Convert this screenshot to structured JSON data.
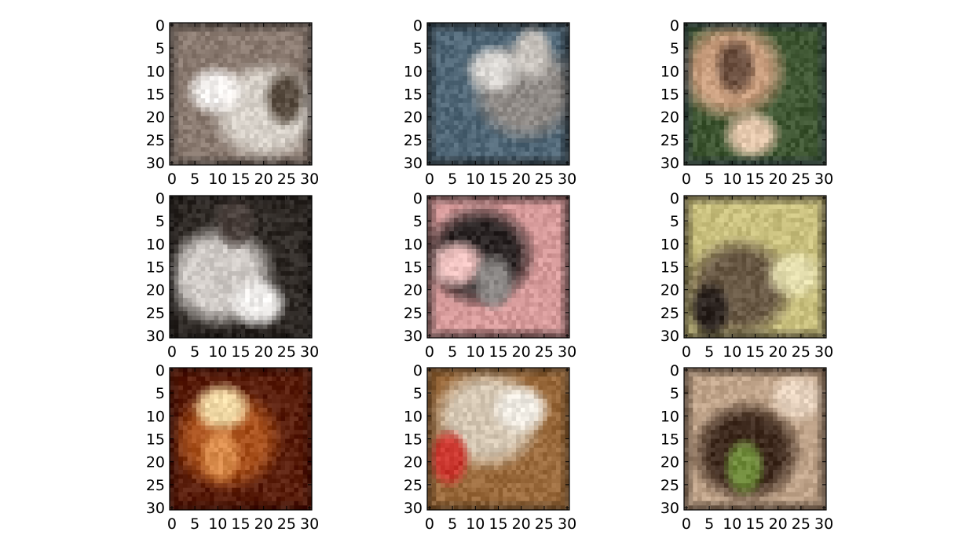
{
  "figure": {
    "panels": [
      {
        "id": "r0c0",
        "subject": "tabby-and-white cat face close-up",
        "palette": {
          "bg": "#8a7a70",
          "main": "#d8d2ca",
          "accent": "#5a4e42",
          "light": "#f3f0ee",
          "dark": "#2c2826"
        }
      },
      {
        "id": "r0c1",
        "subject": "gray fluffy animal on blue background",
        "palette": {
          "bg": "#4f6676",
          "main": "#8f8a86",
          "accent": "#c7c2bc",
          "light": "#d9d6d2",
          "dark": "#151515"
        }
      },
      {
        "id": "r0c2",
        "subject": "tan pomeranian dog in basket",
        "palette": {
          "bg": "#3e5632",
          "main": "#c89d7d",
          "accent": "#6a4e3e",
          "light": "#e6c9ae",
          "dark": "#222a3c"
        }
      },
      {
        "id": "r1c0",
        "subject": "white fluffy puppy",
        "palette": {
          "bg": "#2f2a26",
          "main": "#cfcac6",
          "accent": "#4a403c",
          "light": "#f0eeec",
          "dark": "#1a1716"
        }
      },
      {
        "id": "r1c1",
        "subject": "black and gray cat on pink striped fabric",
        "palette": {
          "bg": "#d69a9a",
          "main": "#2a2424",
          "accent": "#8a8684",
          "light": "#efc2c0",
          "dark": "#0e0c0c"
        }
      },
      {
        "id": "r1c2",
        "subject": "spotted puppy on straw",
        "palette": {
          "bg": "#c9c07e",
          "main": "#6a5a46",
          "accent": "#2c2420",
          "light": "#e6e0b0",
          "dark": "#1c1816"
        }
      },
      {
        "id": "r2c0",
        "subject": "orange-brown fluffy animal close-up",
        "palette": {
          "bg": "#5a1e0c",
          "main": "#a8501c",
          "accent": "#d88a4a",
          "light": "#f4dca8",
          "dark": "#2a0a04"
        }
      },
      {
        "id": "r2c1",
        "subject": "cat with colorful beaded collar",
        "palette": {
          "bg": "#9a6a3c",
          "main": "#d6c8b4",
          "accent": "#c8342c",
          "light": "#f0ece4",
          "dark": "#3c2c1c"
        }
      },
      {
        "id": "r2c2",
        "subject": "dark animal legs on grass",
        "palette": {
          "bg": "#c0a48a",
          "main": "#3e2a1e",
          "accent": "#6e8a3a",
          "light": "#e8d4c0",
          "dark": "#1c120c"
        }
      }
    ],
    "y_ticks": [
      "0",
      "5",
      "10",
      "15",
      "20",
      "25",
      "30"
    ],
    "x_ticks": [
      "0",
      "5",
      "10",
      "15",
      "20",
      "25",
      "30"
    ],
    "axis_range": [
      0,
      31
    ]
  }
}
